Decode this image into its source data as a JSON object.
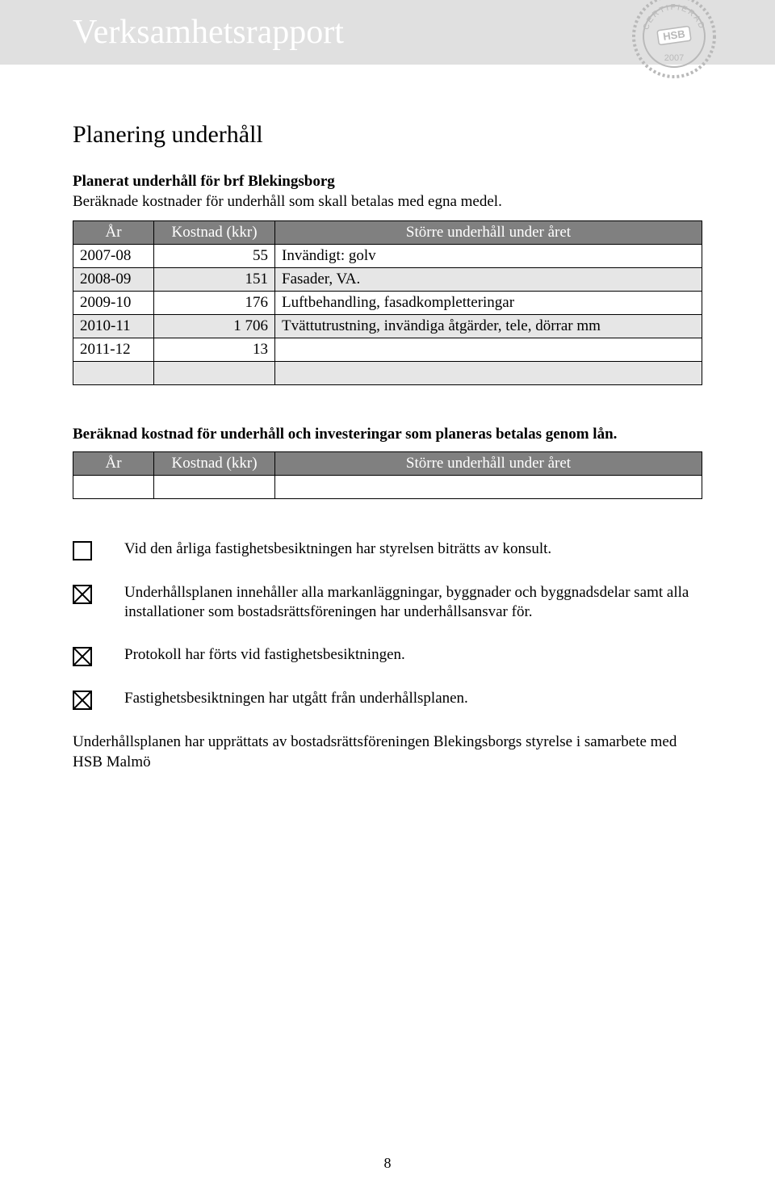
{
  "header": {
    "title": "Verksamhetsrapport",
    "stamp_line1": "CERTIFIERAD",
    "stamp_center": "HSB",
    "stamp_year": "2007"
  },
  "section_heading": "Planering underhåll",
  "maintenance1": {
    "heading": "Planerat underhåll för brf Blekingsborg",
    "subtext": "Beräknade kostnader för underhåll som skall betalas med egna medel.",
    "columns": {
      "year": "År",
      "cost": "Kostnad (kkr)",
      "desc": "Större underhåll under året"
    },
    "rows": [
      {
        "year": "2007-08",
        "cost": "55",
        "desc": "Invändigt: golv"
      },
      {
        "year": "2008-09",
        "cost": "151",
        "desc": "Fasader, VA."
      },
      {
        "year": "2009-10",
        "cost": "176",
        "desc": "Luftbehandling, fasadkompletteringar"
      },
      {
        "year": "2010-11",
        "cost": "1 706",
        "desc": "Tvättutrustning, invändiga åtgärder, tele, dörrar mm"
      },
      {
        "year": "2011-12",
        "cost": "13",
        "desc": ""
      },
      {
        "year": "",
        "cost": "",
        "desc": ""
      }
    ]
  },
  "maintenance2": {
    "heading": "Beräknad kostnad för underhåll och investeringar som planeras betalas genom lån.",
    "columns": {
      "year": "År",
      "cost": "Kostnad (kkr)",
      "desc": "Större underhåll under året"
    },
    "rows": [
      {
        "year": "",
        "cost": "",
        "desc": ""
      }
    ]
  },
  "checks": [
    {
      "checked": false,
      "text": "Vid den årliga fastighetsbesiktningen har styrelsen biträtts av konsult."
    },
    {
      "checked": true,
      "text": "Underhållsplanen innehåller alla markanläggningar, byggnader och byggnadsdelar samt alla installationer som bostadsrättsföreningen har underhållsansvar för."
    },
    {
      "checked": true,
      "text": "Protokoll har förts vid fastighetsbesiktningen."
    },
    {
      "checked": true,
      "text": "Fastighetsbesiktningen har utgått från underhållsplanen."
    }
  ],
  "footer_text": "Underhållsplanen har upprättats av bostadsrättsföreningen Blekingsborgs styrelse i samarbete med HSB Malmö",
  "page_number": "8",
  "colors": {
    "header_band": "#e0e0e0",
    "th_bg": "#808080",
    "th_fg": "#ffffff",
    "alt_row": "#e6e6e6"
  }
}
